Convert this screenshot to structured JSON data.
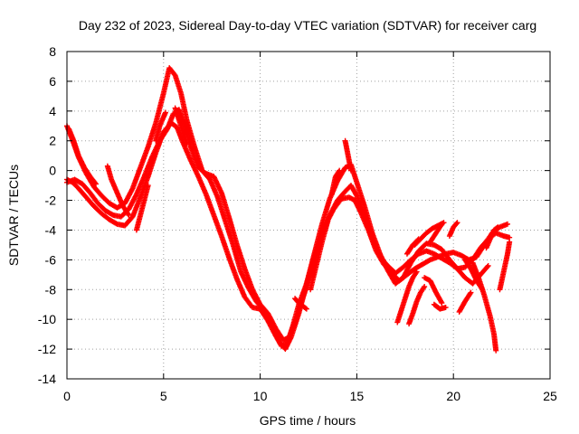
{
  "chart_data": {
    "type": "scatter",
    "title": "Day 232 of 2023, Sidereal Day-to-day VTEC variation (SDTVAR) for receiver carg",
    "xlabel": "GPS time / hours",
    "ylabel": "SDTVAR / TECUs",
    "xlim": [
      0,
      25
    ],
    "ylim": [
      -14,
      8
    ],
    "xticks": [
      0,
      5,
      10,
      15,
      20,
      25
    ],
    "yticks": [
      -14,
      -12,
      -10,
      -8,
      -6,
      -4,
      -2,
      0,
      2,
      4,
      6,
      8
    ],
    "grid": true,
    "marker": "+",
    "color": "#ff0000",
    "series": [
      {
        "name": "track-1",
        "x": [
          0.0,
          0.3,
          0.6,
          1.0,
          1.4,
          1.8,
          2.2,
          2.6,
          3.0,
          3.4,
          3.8,
          4.2,
          4.6,
          5.0,
          5.4,
          5.7,
          6.0,
          6.4,
          6.8,
          7.2,
          7.6,
          8.0,
          8.4,
          8.8,
          9.2,
          9.6,
          10.0,
          10.4,
          10.8,
          11.1,
          11.4,
          11.7,
          12.0,
          12.4,
          12.8,
          13.2,
          13.6,
          14.0,
          14.4,
          14.7,
          15.0,
          15.4,
          15.8,
          16.2,
          16.6,
          17.0,
          17.4,
          17.8,
          18.2,
          18.6,
          19.0,
          19.4,
          19.8,
          20.2,
          20.6,
          21.0,
          21.4,
          21.8,
          22.2,
          22.6,
          22.9
        ],
        "y": [
          -0.6,
          -0.8,
          -1.2,
          -1.8,
          -2.4,
          -2.9,
          -3.3,
          -3.6,
          -3.7,
          -3.1,
          -1.8,
          -0.4,
          1.2,
          2.6,
          3.2,
          2.9,
          1.9,
          0.7,
          -0.4,
          -1.6,
          -3.0,
          -4.4,
          -5.9,
          -7.3,
          -8.5,
          -9.2,
          -9.3,
          -10.1,
          -11.1,
          -11.8,
          -11.6,
          -10.4,
          -9.0,
          -7.6,
          -5.8,
          -4.2,
          -3.0,
          -2.0,
          -1.4,
          -1.0,
          -1.7,
          -3.0,
          -4.6,
          -5.8,
          -6.4,
          -6.9,
          -6.5,
          -6.0,
          -5.6,
          -5.4,
          -5.6,
          -5.9,
          -6.2,
          -6.6,
          -6.5,
          -6.0,
          -5.2,
          -4.6,
          -4.2,
          -4.4,
          -4.5
        ]
      },
      {
        "name": "track-2",
        "x": [
          0.0,
          0.3,
          0.6,
          1.0,
          1.4,
          1.8,
          2.2,
          2.6,
          3.0,
          3.4,
          3.8,
          4.2,
          4.6,
          5.0,
          5.3,
          5.6,
          5.9,
          6.2,
          6.6,
          7.0,
          7.4,
          7.8,
          8.2,
          8.6,
          9.0,
          9.4,
          9.8,
          10.2,
          10.6,
          11.0,
          11.3,
          11.6,
          12.0,
          12.4,
          12.8,
          13.2,
          13.6,
          14.0,
          14.4,
          14.7,
          15.0,
          15.4,
          15.8,
          16.2,
          16.6,
          17.0,
          17.4,
          17.8,
          18.2,
          18.6,
          19.0,
          19.4,
          19.8,
          20.2,
          20.6,
          21.0,
          21.4,
          21.8
        ],
        "y": [
          3.0,
          2.0,
          0.9,
          -0.2,
          -1.1,
          -1.7,
          -2.2,
          -2.5,
          -2.2,
          -1.2,
          0.2,
          1.6,
          3.2,
          5.2,
          6.9,
          6.4,
          5.2,
          3.4,
          1.6,
          0.0,
          -0.6,
          -1.8,
          -3.4,
          -5.0,
          -6.8,
          -7.9,
          -8.8,
          -9.4,
          -10.4,
          -11.5,
          -12.0,
          -11.2,
          -9.6,
          -7.6,
          -5.6,
          -3.6,
          -1.9,
          -0.7,
          0.2,
          0.4,
          -0.8,
          -2.4,
          -4.2,
          -5.6,
          -6.7,
          -7.6,
          -7.2,
          -6.2,
          -5.4,
          -4.9,
          -5.0,
          -5.3,
          -6.0,
          -6.6,
          -7.2,
          -7.6,
          -7.0,
          -6.4
        ]
      },
      {
        "name": "track-3",
        "x": [
          0.0,
          0.4,
          0.8,
          1.2,
          1.6,
          2.0,
          2.4,
          2.8,
          3.2,
          3.6,
          4.0,
          4.4,
          4.8,
          5.2,
          5.5,
          5.8,
          6.1,
          6.4,
          6.8,
          7.2,
          7.6,
          8.0,
          8.4,
          8.8,
          9.2,
          9.6,
          10.0,
          10.4,
          10.8,
          11.2,
          11.5,
          11.8,
          12.2,
          12.6,
          13.0,
          13.4,
          13.8,
          14.2,
          14.6,
          14.9,
          15.2,
          15.6,
          16.0,
          16.4,
          16.8,
          17.2,
          17.6,
          18.0,
          18.4,
          18.8,
          19.2,
          19.6,
          20.0,
          20.4,
          20.8,
          21.2,
          21.6,
          22.0,
          22.4,
          22.8
        ],
        "y": [
          -0.8,
          -0.6,
          -0.9,
          -1.5,
          -2.2,
          -2.7,
          -3.0,
          -3.1,
          -2.6,
          -1.6,
          -0.4,
          0.9,
          2.0,
          2.8,
          3.8,
          4.1,
          3.0,
          1.6,
          0.2,
          -0.2,
          -0.4,
          -1.5,
          -3.2,
          -5.0,
          -6.6,
          -8.0,
          -9.0,
          -9.6,
          -10.6,
          -11.4,
          -11.2,
          -10.2,
          -8.6,
          -7.0,
          -5.2,
          -3.6,
          -2.6,
          -1.9,
          -1.8,
          -2.0,
          -2.8,
          -4.0,
          -5.4,
          -6.3,
          -6.9,
          -7.4,
          -7.0,
          -6.6,
          -6.3,
          -6.0,
          -5.8,
          -5.6,
          -5.5,
          -5.7,
          -6.0,
          -5.8,
          -5.0,
          -4.2,
          -3.8,
          -3.6
        ]
      }
    ],
    "ramps": [
      {
        "x": [
          0.1,
          0.35,
          0.6,
          0.9,
          1.2,
          1.5
        ],
        "y": [
          2.8,
          2.0,
          1.0,
          0.2,
          -0.4,
          -0.9
        ]
      },
      {
        "x": [
          2.1,
          2.3,
          2.6,
          2.9,
          3.2
        ],
        "y": [
          0.3,
          -0.6,
          -1.5,
          -2.4,
          -3.0
        ]
      },
      {
        "x": [
          3.6,
          3.8,
          4.0,
          4.2
        ],
        "y": [
          -4.0,
          -3.0,
          -2.0,
          -1.0
        ]
      },
      {
        "x": [
          4.6,
          4.8,
          5.0,
          5.1
        ],
        "y": [
          2.0,
          3.0,
          3.6,
          3.9
        ]
      },
      {
        "x": [
          5.6,
          5.8,
          6.0,
          6.2
        ],
        "y": [
          4.2,
          3.4,
          2.6,
          1.8
        ]
      },
      {
        "x": [
          11.8,
          12.0,
          12.2,
          12.4
        ],
        "y": [
          -8.6,
          -8.9,
          -9.1,
          -9.3
        ]
      },
      {
        "x": [
          12.6,
          12.9,
          13.2,
          13.5
        ],
        "y": [
          -8.0,
          -6.4,
          -4.8,
          -3.4
        ]
      },
      {
        "x": [
          13.7,
          13.9,
          14.1
        ],
        "y": [
          -1.6,
          -0.4,
          0.0
        ]
      },
      {
        "x": [
          14.4,
          14.55,
          14.7
        ],
        "y": [
          2.0,
          1.0,
          0.0
        ]
      },
      {
        "x": [
          17.1,
          17.3,
          17.5,
          17.7,
          17.9,
          18.1
        ],
        "y": [
          -10.2,
          -9.4,
          -8.6,
          -7.8,
          -7.2,
          -6.8
        ]
      },
      {
        "x": [
          17.7,
          17.9,
          18.1,
          18.3,
          18.5
        ],
        "y": [
          -10.3,
          -9.6,
          -8.8,
          -8.2,
          -7.8
        ]
      },
      {
        "x": [
          18.0,
          18.3,
          18.6,
          18.9,
          19.2,
          19.5
        ],
        "y": [
          -5.0,
          -4.6,
          -4.2,
          -3.9,
          -3.7,
          -3.5
        ]
      },
      {
        "x": [
          17.6,
          17.9,
          18.2
        ],
        "y": [
          -5.6,
          -5.0,
          -4.6
        ]
      },
      {
        "x": [
          18.8,
          19.1,
          19.4
        ],
        "y": [
          -4.8,
          -4.2,
          -3.6
        ]
      },
      {
        "x": [
          18.5,
          18.8,
          19.1,
          19.4
        ],
        "y": [
          -7.2,
          -7.4,
          -8.2,
          -8.9
        ]
      },
      {
        "x": [
          19.0,
          19.3,
          19.6
        ],
        "y": [
          -9.0,
          -9.3,
          -9.2
        ]
      },
      {
        "x": [
          19.8,
          20.0,
          20.2
        ],
        "y": [
          -4.4,
          -3.8,
          -3.5
        ]
      },
      {
        "x": [
          20.3,
          20.6,
          20.9
        ],
        "y": [
          -9.5,
          -8.8,
          -8.2
        ]
      },
      {
        "x": [
          20.6,
          20.9,
          21.2,
          21.5
        ],
        "y": [
          -6.0,
          -6.6,
          -7.4,
          -8.0
        ]
      },
      {
        "x": [
          21.0,
          21.3,
          21.6,
          21.9,
          22.1,
          22.2
        ],
        "y": [
          -6.2,
          -7.2,
          -8.4,
          -9.8,
          -11.0,
          -12.1
        ]
      },
      {
        "x": [
          21.7,
          21.9,
          22.1,
          22.3
        ],
        "y": [
          -5.2,
          -4.6,
          -4.0,
          -3.8
        ]
      },
      {
        "x": [
          22.4,
          22.6,
          22.8,
          22.9
        ],
        "y": [
          -8.0,
          -6.8,
          -5.6,
          -4.8
        ]
      }
    ]
  }
}
